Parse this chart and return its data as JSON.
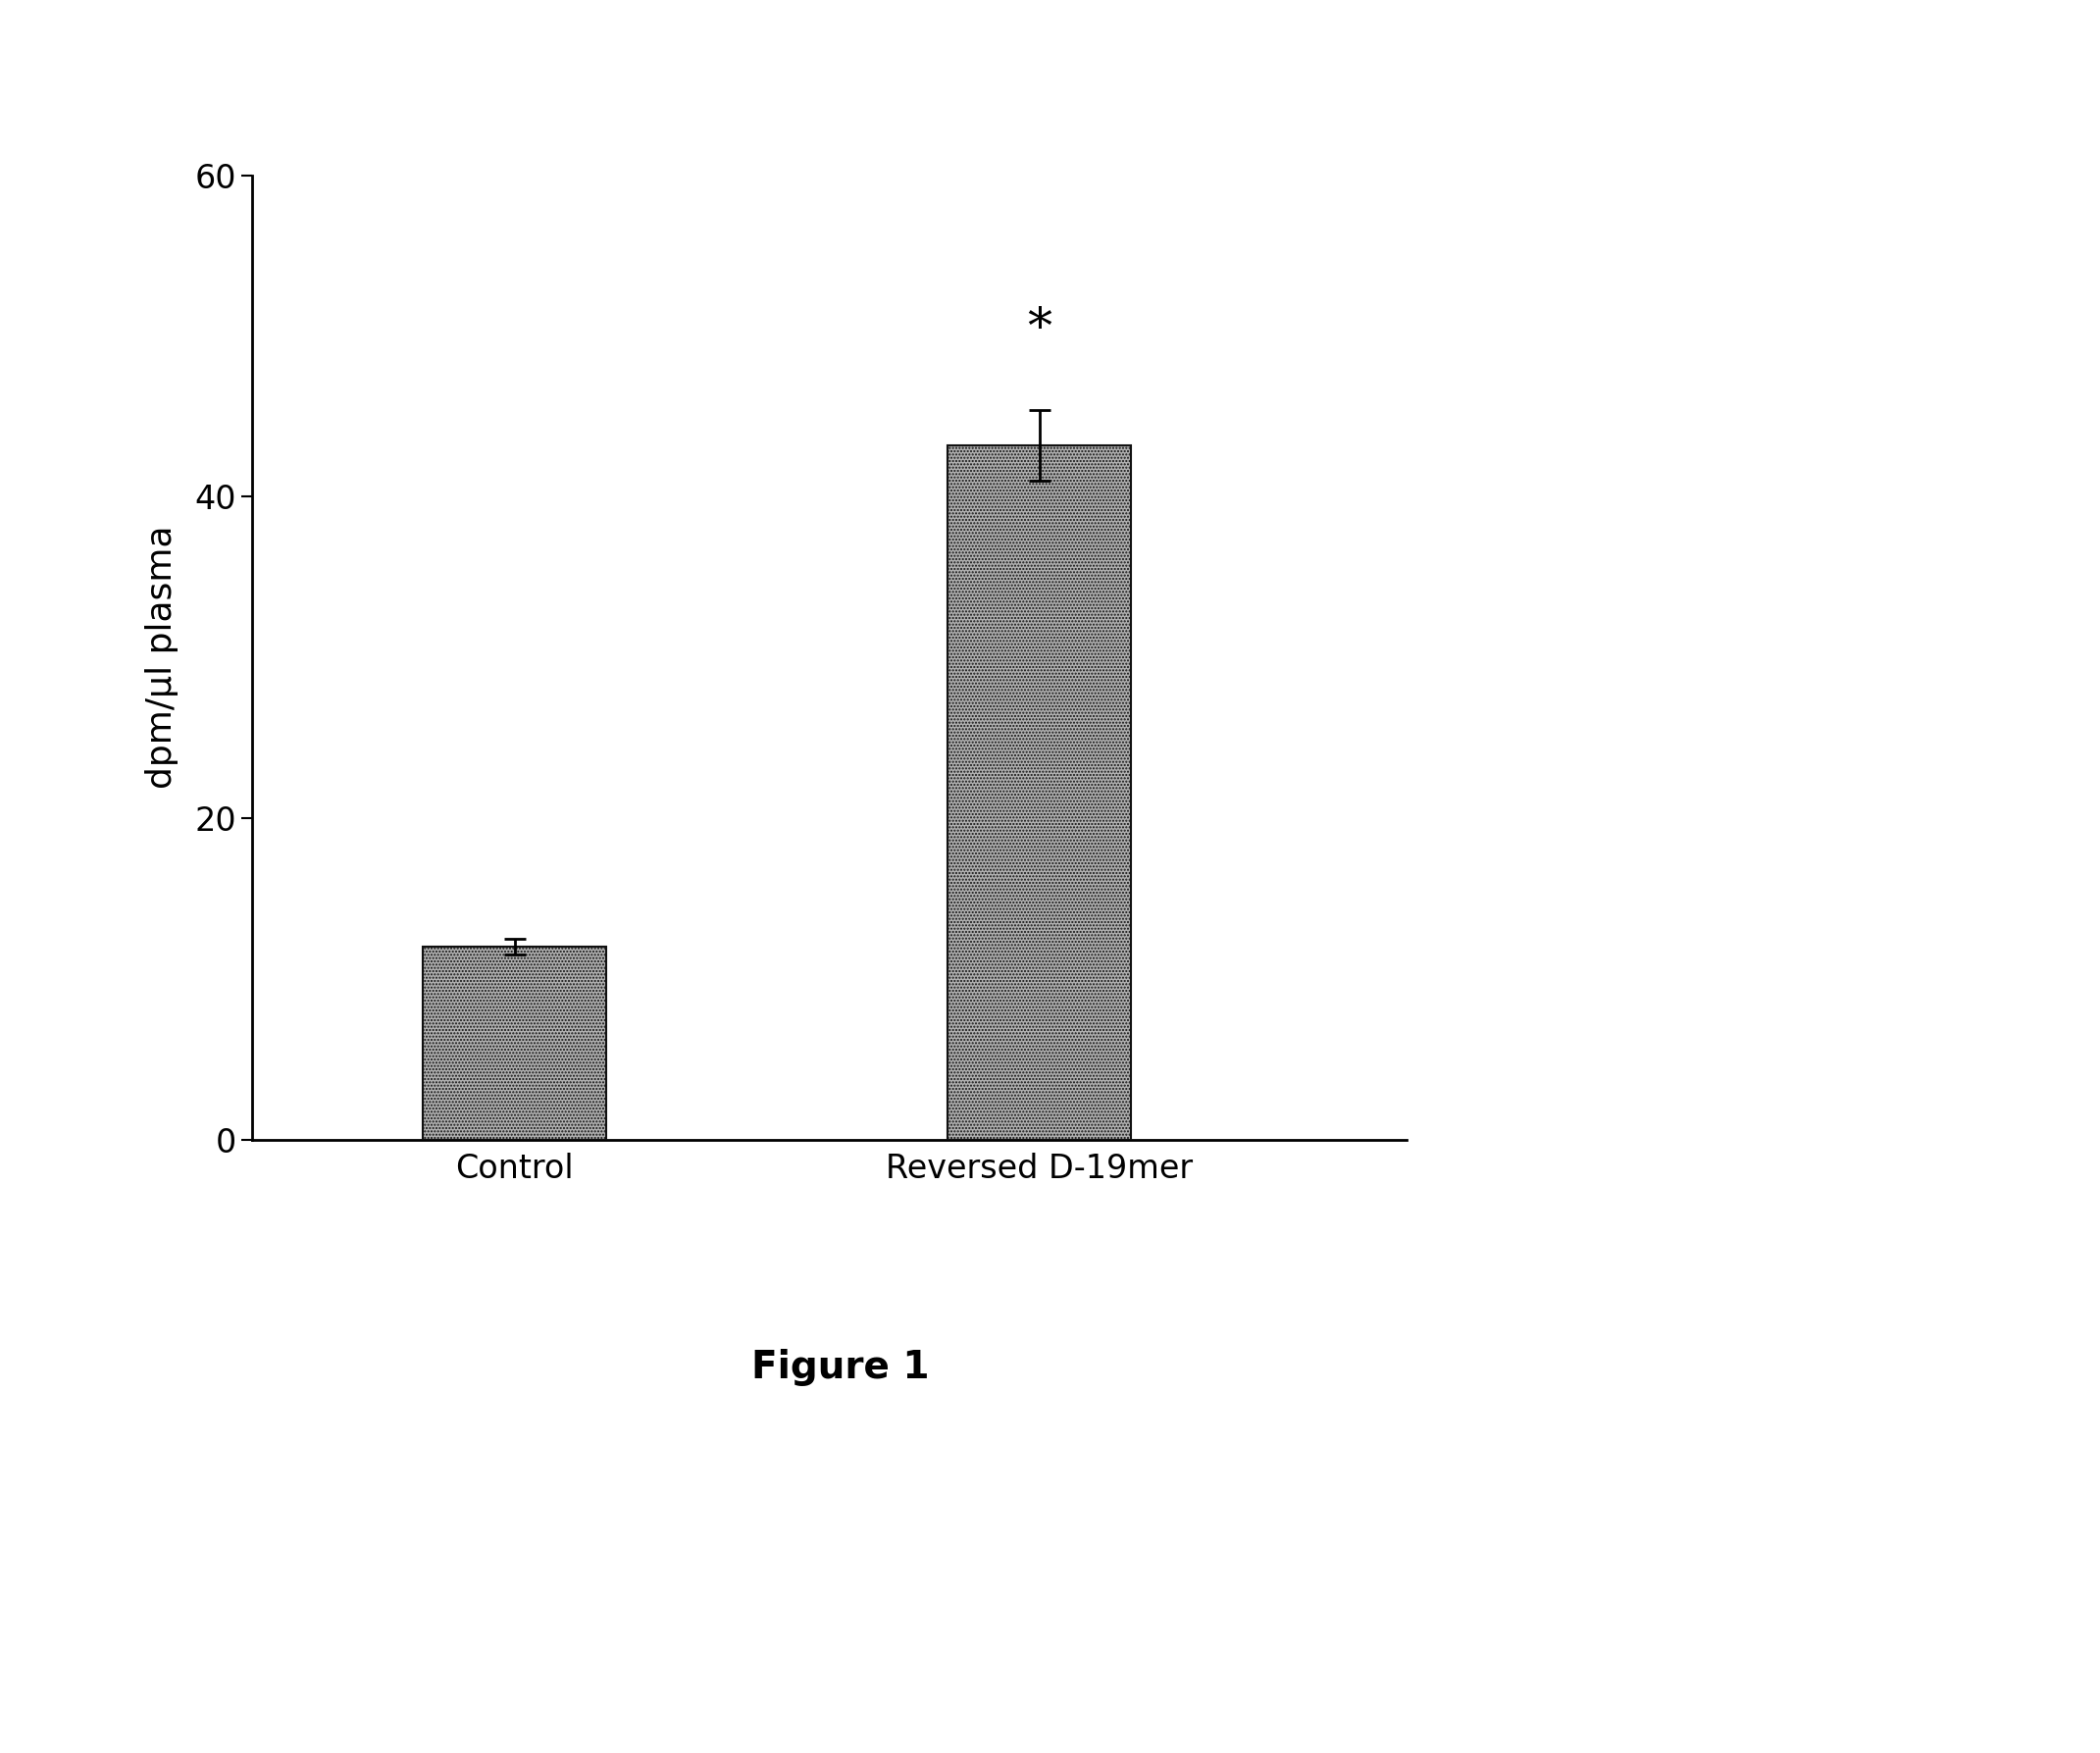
{
  "categories": [
    "Control",
    "Reversed D-19mer"
  ],
  "values": [
    12.0,
    43.2
  ],
  "errors": [
    0.5,
    2.2
  ],
  "bar_color": "#b0b0b0",
  "bar_edgecolor": "#111111",
  "ylabel": "dpm/μl plasma",
  "ylim": [
    0,
    60
  ],
  "yticks": [
    0,
    20,
    40,
    60
  ],
  "figure_label": "Figure 1",
  "significance_label": "*",
  "bar_width": 0.35,
  "background_color": "#ffffff",
  "ylabel_fontsize": 26,
  "tick_fontsize": 24,
  "xlabel_fontsize": 24,
  "figure_label_fontsize": 28,
  "significance_fontsize": 36,
  "errorbar_capsize": 8,
  "errorbar_linewidth": 2.0,
  "hatch": "....."
}
